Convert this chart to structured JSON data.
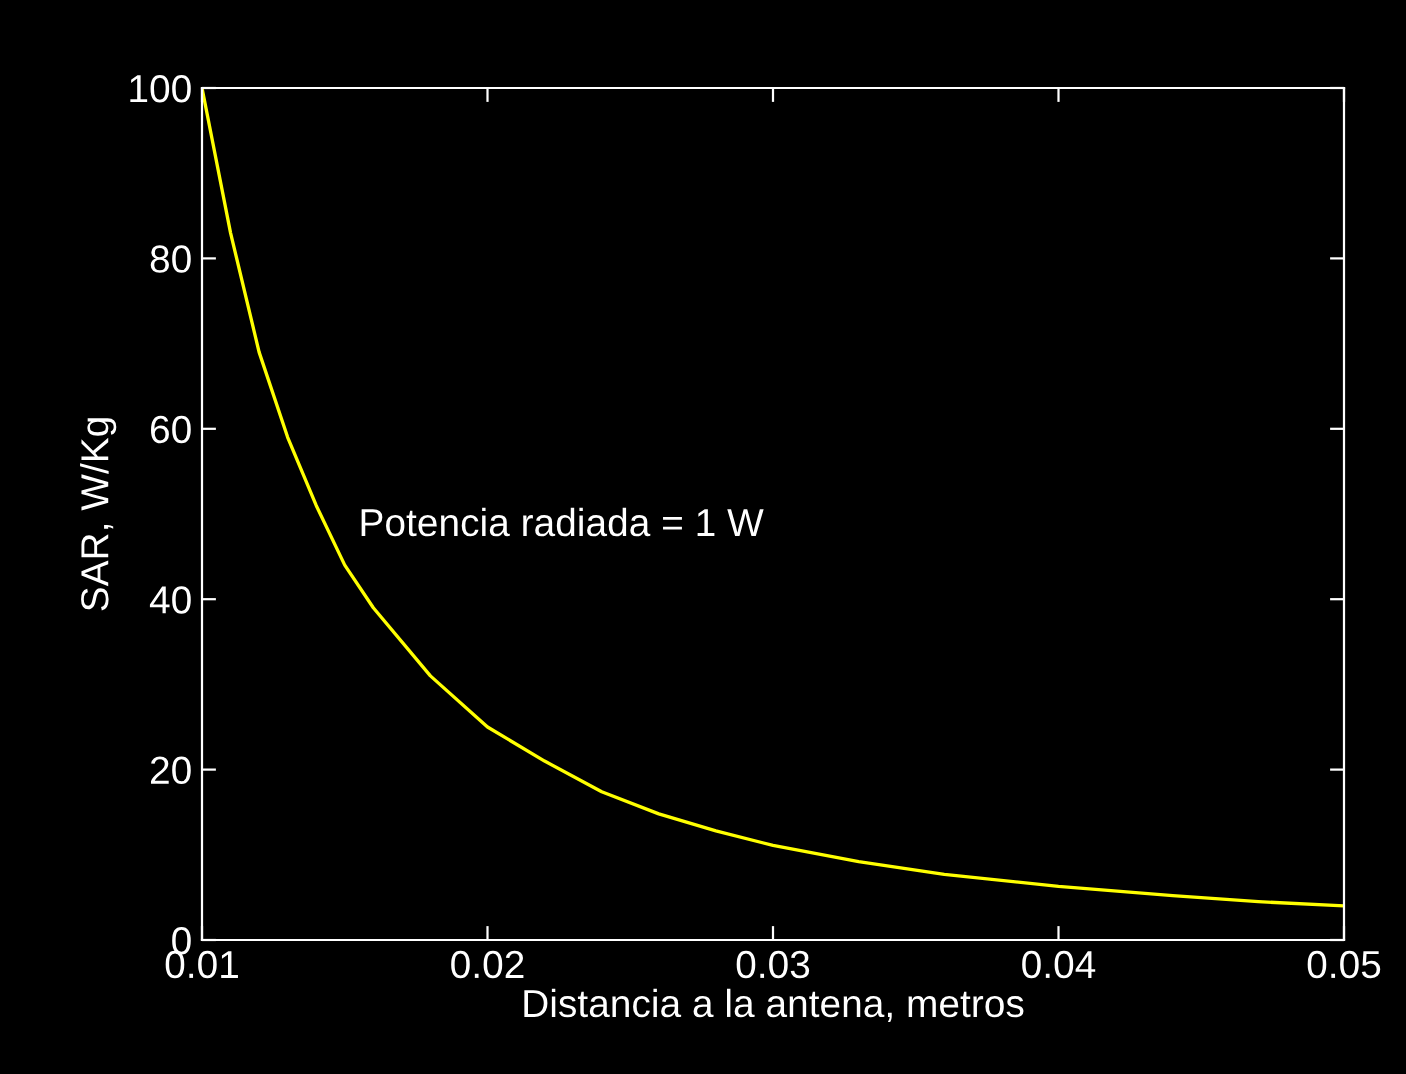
{
  "chart_data": {
    "type": "line",
    "xlabel": "Distancia a la antena, metros",
    "ylabel": "SAR, W/Kg",
    "annotations": [
      "Potencia radiada = 1 W"
    ],
    "x": [
      0.01,
      0.011,
      0.012,
      0.013,
      0.014,
      0.015,
      0.016,
      0.018,
      0.02,
      0.022,
      0.024,
      0.026,
      0.028,
      0.03,
      0.033,
      0.036,
      0.04,
      0.044,
      0.047,
      0.05
    ],
    "series": [
      {
        "color": "#ffff00",
        "values": [
          100,
          83,
          69,
          59,
          51,
          44,
          39,
          31,
          25,
          21,
          17.4,
          14.8,
          12.8,
          11.1,
          9.2,
          7.7,
          6.3,
          5.2,
          4.5,
          4.0
        ]
      }
    ],
    "xlim": [
      0.01,
      0.05
    ],
    "xticks": [
      0.01,
      0.02,
      0.03,
      0.04,
      0.05
    ],
    "ylim": [
      0,
      100
    ],
    "yticks": [
      0,
      20,
      40,
      60,
      80,
      100
    ],
    "grid": false,
    "legend": false,
    "marker": "none",
    "line_style": "solid"
  }
}
